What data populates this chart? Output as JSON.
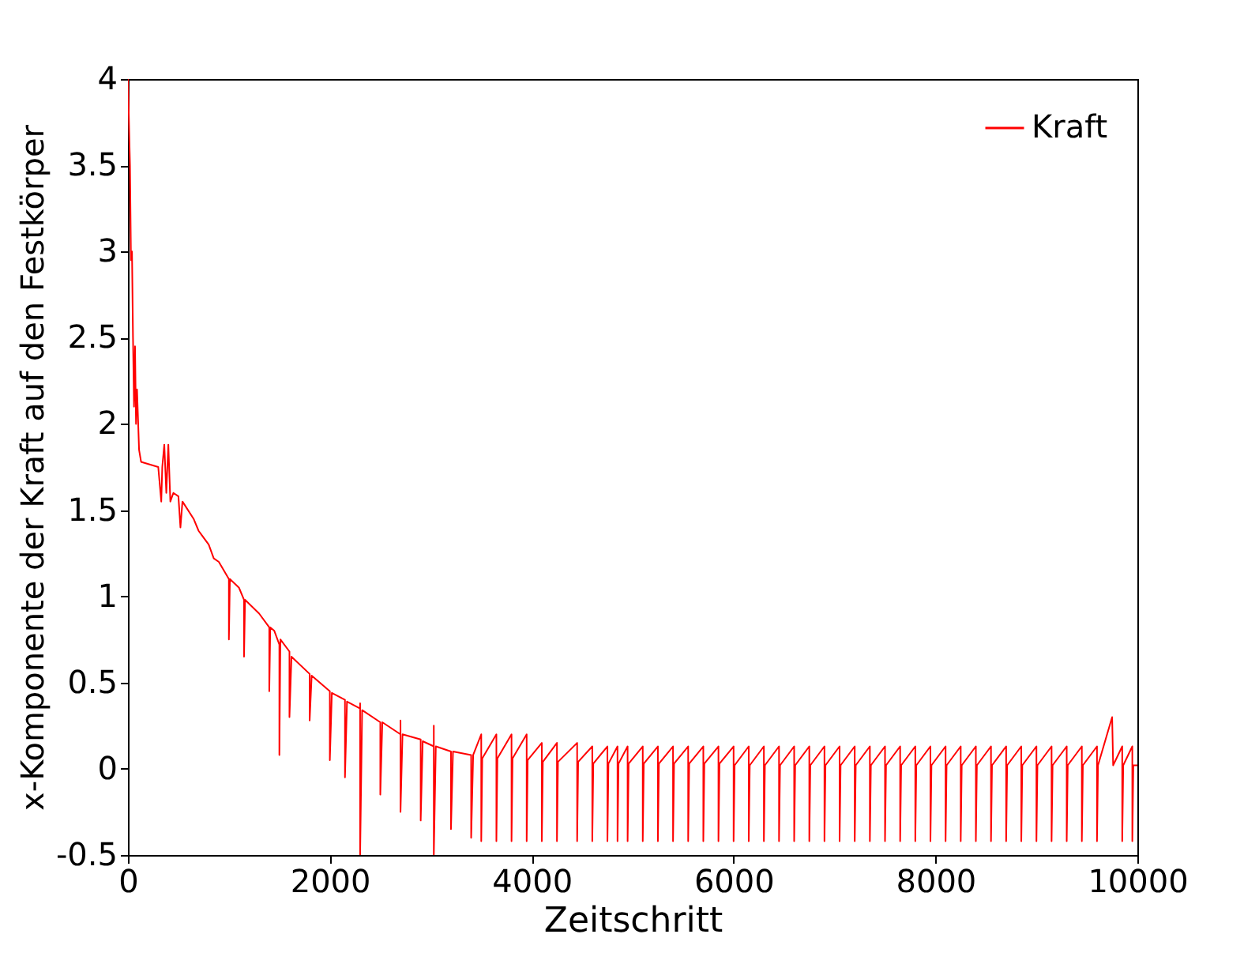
{
  "chart_data": {
    "type": "line",
    "xlabel": "Zeitschritt",
    "ylabel": "x-Komponente der Kraft auf den Festkörper",
    "xlim": [
      0,
      10000
    ],
    "ylim": [
      -0.5,
      4
    ],
    "xticks": [
      0,
      2000,
      4000,
      6000,
      8000,
      10000
    ],
    "yticks": [
      -0.5,
      0,
      0.5,
      1,
      1.5,
      2,
      2.5,
      3,
      3.5,
      4
    ],
    "legend": "top right",
    "grid": false,
    "series": [
      {
        "name": "Kraft",
        "color": "#ff0000",
        "x": [
          0,
          20,
          30,
          40,
          50,
          60,
          70,
          80,
          90,
          110,
          130,
          300,
          330,
          340,
          360,
          380,
          400,
          420,
          450,
          500,
          520,
          540,
          650,
          700,
          800,
          850,
          900,
          1000,
          1000,
          1010,
          1100,
          1150,
          1150,
          1160,
          1300,
          1400,
          1400,
          1410,
          1450,
          1500,
          1500,
          1510,
          1600,
          1600,
          1620,
          1800,
          1800,
          1820,
          2000,
          2000,
          2020,
          2150,
          2150,
          2170,
          2300,
          2300,
          2300,
          2320,
          2500,
          2500,
          2520,
          2700,
          2700,
          2700,
          2720,
          2900,
          2900,
          2920,
          3030,
          3030,
          3030,
          3050,
          3200,
          3200,
          3220,
          3400,
          3400,
          3420,
          3500,
          3500,
          3510,
          3650,
          3650,
          3660,
          3800,
          3800,
          3810,
          3950,
          3950,
          3960,
          4100,
          4100,
          4110,
          4250,
          4250,
          4260,
          4450,
          4450,
          4460,
          4600,
          4600,
          4610,
          4750,
          4750,
          4760,
          4850,
          4850,
          4860,
          4950,
          4950,
          4960,
          5100,
          5100,
          5110,
          5250,
          5250,
          5260,
          5400,
          5400,
          5410,
          5550,
          5550,
          5560,
          5700,
          5700,
          5710,
          5850,
          5850,
          5860,
          6000,
          6000,
          6010,
          6150,
          6150,
          6160,
          6300,
          6300,
          6310,
          6450,
          6450,
          6460,
          6600,
          6600,
          6610,
          6750,
          6750,
          6760,
          6900,
          6900,
          6910,
          7050,
          7050,
          7060,
          7200,
          7200,
          7210,
          7350,
          7350,
          7360,
          7500,
          7500,
          7510,
          7650,
          7650,
          7660,
          7800,
          7800,
          7810,
          7950,
          7950,
          7960,
          8100,
          8100,
          8110,
          8250,
          8250,
          8260,
          8400,
          8400,
          8410,
          8550,
          8550,
          8560,
          8700,
          8700,
          8710,
          8850,
          8850,
          8860,
          9000,
          9000,
          9010,
          9150,
          9150,
          9160,
          9300,
          9300,
          9310,
          9450,
          9450,
          9460,
          9600,
          9600,
          9610,
          9750,
          9760,
          9850,
          9850,
          9860,
          9950,
          9950,
          9960,
          10000
        ],
        "values": [
          4.0,
          3.5,
          2.95,
          3.0,
          2.5,
          2.1,
          2.45,
          2.0,
          2.2,
          1.85,
          1.78,
          1.75,
          1.55,
          1.75,
          1.88,
          1.6,
          1.88,
          1.55,
          1.6,
          1.58,
          1.4,
          1.55,
          1.45,
          1.38,
          1.3,
          1.22,
          1.2,
          1.1,
          0.75,
          1.1,
          1.05,
          0.98,
          0.65,
          0.98,
          0.9,
          0.82,
          0.45,
          0.82,
          0.8,
          0.72,
          0.08,
          0.75,
          0.68,
          0.3,
          0.65,
          0.55,
          0.28,
          0.54,
          0.45,
          0.05,
          0.44,
          0.4,
          -0.05,
          0.39,
          0.35,
          0.38,
          -0.5,
          0.34,
          0.27,
          -0.15,
          0.27,
          0.2,
          0.28,
          -0.25,
          0.2,
          0.17,
          -0.3,
          0.16,
          0.13,
          0.25,
          -0.5,
          0.13,
          0.1,
          -0.35,
          0.1,
          0.08,
          -0.4,
          0.08,
          0.2,
          -0.42,
          0.06,
          0.2,
          -0.42,
          0.06,
          0.2,
          -0.42,
          0.06,
          0.2,
          -0.42,
          0.05,
          0.15,
          -0.42,
          0.04,
          0.15,
          -0.42,
          0.04,
          0.15,
          -0.42,
          0.04,
          0.13,
          -0.42,
          0.03,
          0.13,
          -0.42,
          0.03,
          0.13,
          -0.42,
          0.03,
          0.13,
          -0.42,
          0.03,
          0.13,
          -0.42,
          0.03,
          0.13,
          -0.42,
          0.03,
          0.13,
          -0.42,
          0.03,
          0.13,
          -0.42,
          0.03,
          0.13,
          -0.42,
          0.03,
          0.13,
          -0.42,
          0.03,
          0.13,
          -0.42,
          0.02,
          0.13,
          -0.42,
          0.02,
          0.13,
          -0.42,
          0.02,
          0.13,
          -0.42,
          0.02,
          0.13,
          -0.42,
          0.02,
          0.13,
          -0.42,
          0.02,
          0.13,
          -0.42,
          0.02,
          0.13,
          -0.42,
          0.02,
          0.13,
          -0.42,
          0.02,
          0.13,
          -0.42,
          0.02,
          0.13,
          -0.42,
          0.02,
          0.13,
          -0.42,
          0.02,
          0.13,
          -0.42,
          0.02,
          0.13,
          -0.42,
          0.02,
          0.13,
          -0.42,
          0.02,
          0.13,
          -0.42,
          0.02,
          0.13,
          -0.42,
          0.02,
          0.13,
          -0.42,
          0.02,
          0.13,
          -0.42,
          0.02,
          0.13,
          -0.42,
          0.02,
          0.13,
          -0.42,
          0.02,
          0.13,
          -0.42,
          0.02,
          0.13,
          -0.42,
          0.02,
          0.13,
          -0.42,
          0.02,
          0.13,
          -0.42,
          0.02,
          0.3,
          0.02,
          0.13,
          -0.42,
          0.02,
          0.13,
          -0.42,
          0.02,
          0.02
        ]
      }
    ]
  }
}
